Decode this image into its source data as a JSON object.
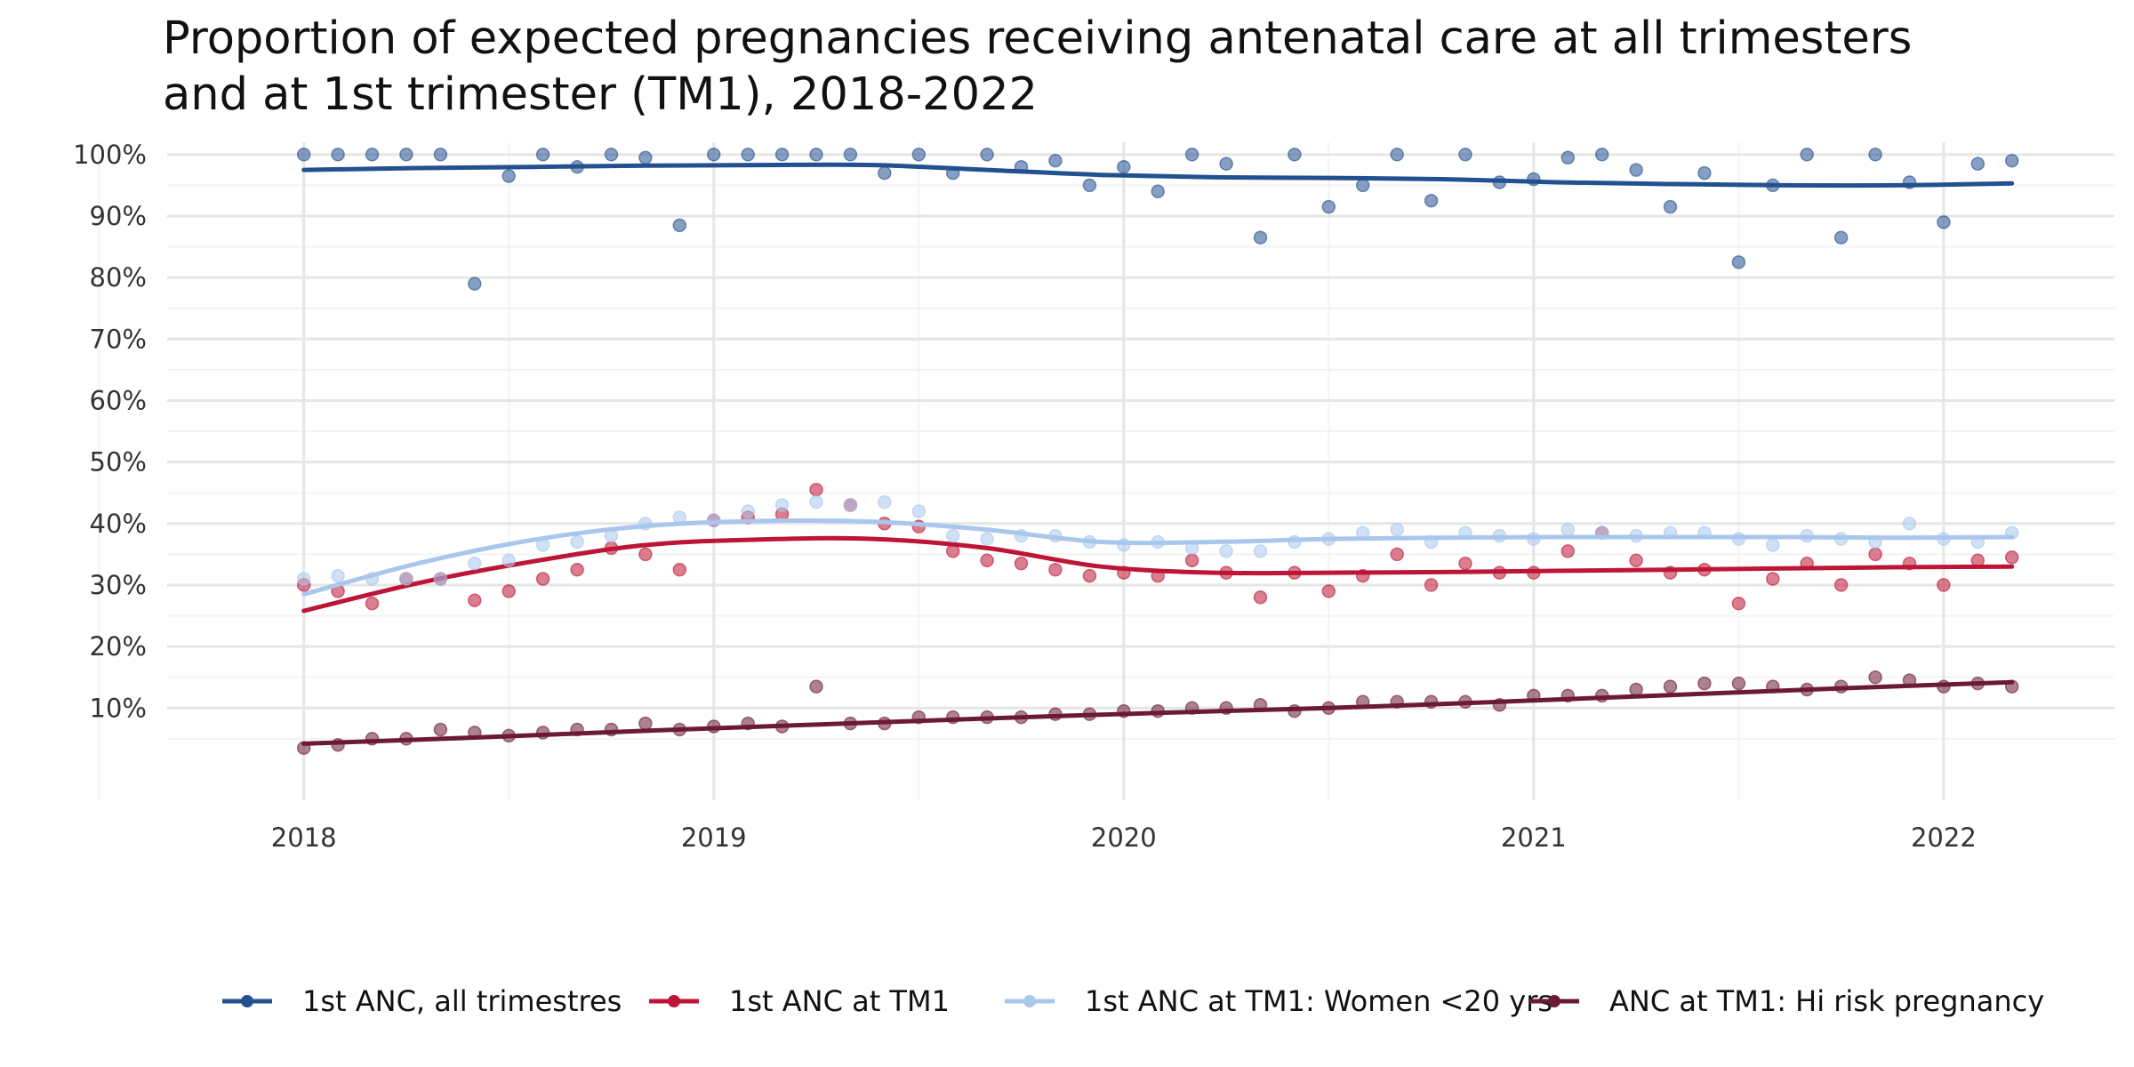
{
  "chart_data": {
    "type": "line",
    "title_lines": [
      "Proportion of expected pregnancies receiving antenatal care at all trimesters",
      "and at 1st trimester (TM1), 2018-2022"
    ],
    "xlabel": "",
    "ylabel": "",
    "x_ticks": [
      "2018",
      "2019",
      "2020",
      "2021",
      "2022"
    ],
    "x_tick_values": [
      2018,
      2019,
      2020,
      2021,
      2022
    ],
    "y_ticks": [
      "10%",
      "20%",
      "30%",
      "40%",
      "50%",
      "60%",
      "70%",
      "80%",
      "90%",
      "100%"
    ],
    "y_tick_values": [
      10,
      20,
      30,
      40,
      50,
      60,
      70,
      80,
      90,
      100
    ],
    "xlim": [
      "2017-09",
      "2022-06"
    ],
    "ylim": [
      -5,
      102
    ],
    "grid": true,
    "legend_position": "bottom",
    "x_months": [
      "2018-01",
      "2018-02",
      "2018-03",
      "2018-04",
      "2018-05",
      "2018-06",
      "2018-07",
      "2018-08",
      "2018-09",
      "2018-10",
      "2018-11",
      "2018-12",
      "2019-01",
      "2019-02",
      "2019-03",
      "2019-04",
      "2019-05",
      "2019-06",
      "2019-07",
      "2019-08",
      "2019-09",
      "2019-10",
      "2019-11",
      "2019-12",
      "2020-01",
      "2020-02",
      "2020-03",
      "2020-04",
      "2020-05",
      "2020-06",
      "2020-07",
      "2020-08",
      "2020-09",
      "2020-10",
      "2020-11",
      "2020-12",
      "2021-01",
      "2021-02",
      "2021-03",
      "2021-04",
      "2021-05",
      "2021-06",
      "2021-07",
      "2021-08",
      "2021-09",
      "2021-10",
      "2021-11",
      "2021-12",
      "2022-01",
      "2022-02",
      "2022-03"
    ],
    "series": [
      {
        "name": "1st ANC, all trimestres",
        "color": "#23508f",
        "values": [
          100,
          100,
          100,
          100,
          100,
          79,
          96.5,
          100,
          98,
          100,
          99.5,
          88.5,
          100,
          100,
          100,
          100,
          100,
          97,
          100,
          97,
          100,
          98,
          99,
          95,
          98,
          94,
          100,
          98.5,
          86.5,
          100,
          91.5,
          95,
          100,
          92.5,
          100,
          95.5,
          96,
          99.5,
          100,
          97.5,
          91.5,
          97,
          82.5,
          95,
          100,
          86.5,
          100,
          95.5,
          89,
          98.5,
          99
        ],
        "trend": [
          97.5,
          97.8,
          98,
          98.2,
          98.3,
          98.3,
          97.5,
          96.7,
          96.3,
          96.2,
          96,
          95.5,
          95.2,
          95,
          95,
          95.3
        ]
      },
      {
        "name": "1st ANC at TM1",
        "color": "#bd1535",
        "values": [
          30,
          29,
          27,
          31,
          31,
          27.5,
          29,
          31,
          32.5,
          36,
          35,
          32.5,
          40.5,
          41,
          41.5,
          45.5,
          43,
          40,
          39.5,
          35.5,
          34,
          33.5,
          32.5,
          31.5,
          32,
          31.5,
          34,
          32,
          28,
          32,
          29,
          31.5,
          35,
          30,
          33.5,
          32,
          32,
          35.5,
          38.5,
          34,
          32,
          32.5,
          27,
          31,
          33.5,
          30,
          35,
          33.5,
          30,
          34,
          34.5
        ],
        "trend": [
          25.8,
          30.3,
          33.8,
          36.5,
          37.4,
          37.5,
          36,
          33,
          32,
          32,
          32.1,
          32.3,
          32.5,
          32.7,
          32.9,
          33
        ]
      },
      {
        "name": "1st ANC at TM1: Women <20 yrs",
        "color": "#a9c6ed",
        "values": [
          31,
          31.5,
          31,
          31,
          31,
          33.5,
          34,
          36.5,
          37,
          38,
          40,
          41,
          40.5,
          42,
          43,
          43.5,
          43,
          43.5,
          42,
          38,
          37.5,
          38,
          38,
          37,
          36.5,
          37,
          36,
          35.5,
          35.5,
          37,
          37.5,
          38.5,
          39,
          37,
          38.5,
          38,
          37.5,
          39,
          38.5,
          38,
          38.5,
          38.5,
          37.5,
          36.5,
          38,
          37.5,
          37,
          40,
          37.5,
          37,
          38.5
        ],
        "trend": [
          28.5,
          33.5,
          37.3,
          39.6,
          40.4,
          40.3,
          39,
          37,
          37,
          37.5,
          37.7,
          37.8,
          37.8,
          37.8,
          37.7,
          37.8
        ]
      },
      {
        "name": "ANC at TM1: Hi risk pregnancy",
        "color": "#6b1a35",
        "values": [
          3.5,
          4,
          5,
          5,
          6.5,
          6,
          5.5,
          6,
          6.5,
          6.5,
          7.5,
          6.5,
          7,
          7.5,
          7,
          13.5,
          7.5,
          7.5,
          8.5,
          8.5,
          8.5,
          8.5,
          9,
          9,
          9.5,
          9.5,
          10,
          10,
          10.5,
          9.5,
          10,
          11,
          11,
          11,
          11,
          10.5,
          12,
          12,
          12,
          13,
          13.5,
          14,
          14,
          13.5,
          13,
          13.5,
          15,
          14.5,
          13.5,
          14,
          13.5
        ],
        "trend": [
          4.2,
          5.2,
          6.3,
          7.3,
          8.3,
          9.2,
          10,
          11,
          12.1,
          13.2,
          14.2
        ]
      }
    ]
  }
}
